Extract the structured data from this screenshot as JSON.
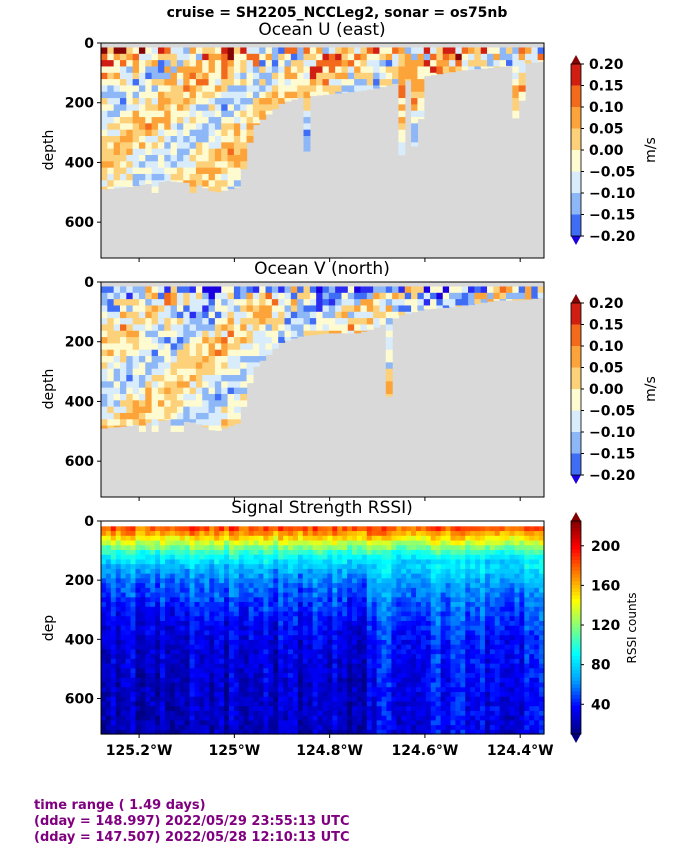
{
  "suptitle": "cruise = SH2205_NCCLeg2,  sonar = os75nb",
  "footer": {
    "line1": "time range ( 1.49 days)",
    "line2": "(dday = 148.997) 2022/05/29 23:55:13 UTC",
    "line3": "(dday = 147.507) 2022/05/28 12:10:13 UTC"
  },
  "colors": {
    "nodata": "#d9d9d9",
    "velocity_levels": [
      "#1a00e0",
      "#2a2cf0",
      "#3f6df5",
      "#8db7f7",
      "#d9ecfb",
      "#fffbd0",
      "#fdd17a",
      "#fca43a",
      "#f46a1c",
      "#d11e12",
      "#850505"
    ],
    "rssi_stops": [
      "#000080",
      "#0000ff",
      "#00a0ff",
      "#00ffff",
      "#7fff7f",
      "#ffff00",
      "#ff8000",
      "#ff0000",
      "#800000"
    ]
  },
  "chart_data": [
    {
      "type": "heatmap",
      "title": "Ocean U (east)",
      "xlabel": "",
      "ylabel": "depth",
      "ylim": [
        720,
        0
      ],
      "xlim": [
        -125.28,
        -124.35
      ],
      "yticks": [
        "0",
        "200",
        "400",
        "600"
      ],
      "xticks": [],
      "colorbar": {
        "label": "m/s",
        "ticks": [
          "0.20",
          "0.15",
          "0.10",
          "0.05",
          "0.00",
          "−0.05",
          "−0.10",
          "−0.15",
          "−0.20"
        ],
        "range": [
          -0.2,
          0.2
        ],
        "extend": "both"
      },
      "nodata_depth_profile": {
        "lon": [
          -125.28,
          -125.22,
          -125.14,
          -125.08,
          -125.04,
          -124.99,
          -124.96,
          -124.9,
          -124.86,
          -124.8,
          -124.74,
          -124.7,
          -124.65,
          -124.6,
          -124.52,
          -124.45,
          -124.4,
          -124.35
        ],
        "bottom_depth": [
          490,
          480,
          460,
          470,
          500,
          480,
          280,
          200,
          180,
          170,
          160,
          150,
          130,
          110,
          90,
          80,
          70,
          60
        ]
      }
    },
    {
      "type": "heatmap",
      "title": "Ocean V (north)",
      "xlabel": "",
      "ylabel": "depth",
      "ylim": [
        720,
        0
      ],
      "xlim": [
        -125.28,
        -124.35
      ],
      "yticks": [
        "0",
        "200",
        "400",
        "600"
      ],
      "xticks": [],
      "colorbar": {
        "label": "m/s",
        "ticks": [
          "0.20",
          "0.15",
          "0.10",
          "0.05",
          "0.00",
          "−0.05",
          "−0.10",
          "−0.15",
          "−0.20"
        ],
        "range": [
          -0.2,
          0.2
        ],
        "extend": "both"
      },
      "nodata_depth_profile": {
        "lon": [
          -125.28,
          -125.22,
          -125.14,
          -125.08,
          -125.04,
          -124.99,
          -124.96,
          -124.9,
          -124.86,
          -124.8,
          -124.74,
          -124.7,
          -124.65,
          -124.6,
          -124.52,
          -124.45,
          -124.4,
          -124.35
        ],
        "bottom_depth": [
          490,
          480,
          460,
          470,
          500,
          470,
          290,
          200,
          180,
          170,
          170,
          150,
          110,
          90,
          80,
          60,
          60,
          50
        ]
      }
    },
    {
      "type": "heatmap",
      "title": "Signal Strength RSSI)",
      "xlabel": "",
      "ylabel": "dep",
      "ylim": [
        720,
        0
      ],
      "xlim": [
        -125.28,
        -124.35
      ],
      "yticks": [
        "0",
        "200",
        "400",
        "600"
      ],
      "xticks": [
        "125.2°W",
        "125°W",
        "124.8°W",
        "124.6°W",
        "124.4°W"
      ],
      "xtick_values": [
        -125.2,
        -125.0,
        -124.8,
        -124.6,
        -124.4
      ],
      "colorbar": {
        "label": "RSSI counts",
        "ticks": [
          "200",
          "160",
          "120",
          "80",
          "40"
        ],
        "tick_values": [
          200,
          160,
          120,
          80,
          40
        ],
        "range": [
          10,
          225
        ],
        "extend": "both"
      },
      "profile": {
        "depth": [
          20,
          40,
          60,
          80,
          100,
          140,
          200,
          300,
          400,
          600,
          720
        ],
        "rssi": [
          180,
          160,
          140,
          120,
          100,
          75,
          55,
          40,
          30,
          25,
          22
        ]
      }
    }
  ]
}
